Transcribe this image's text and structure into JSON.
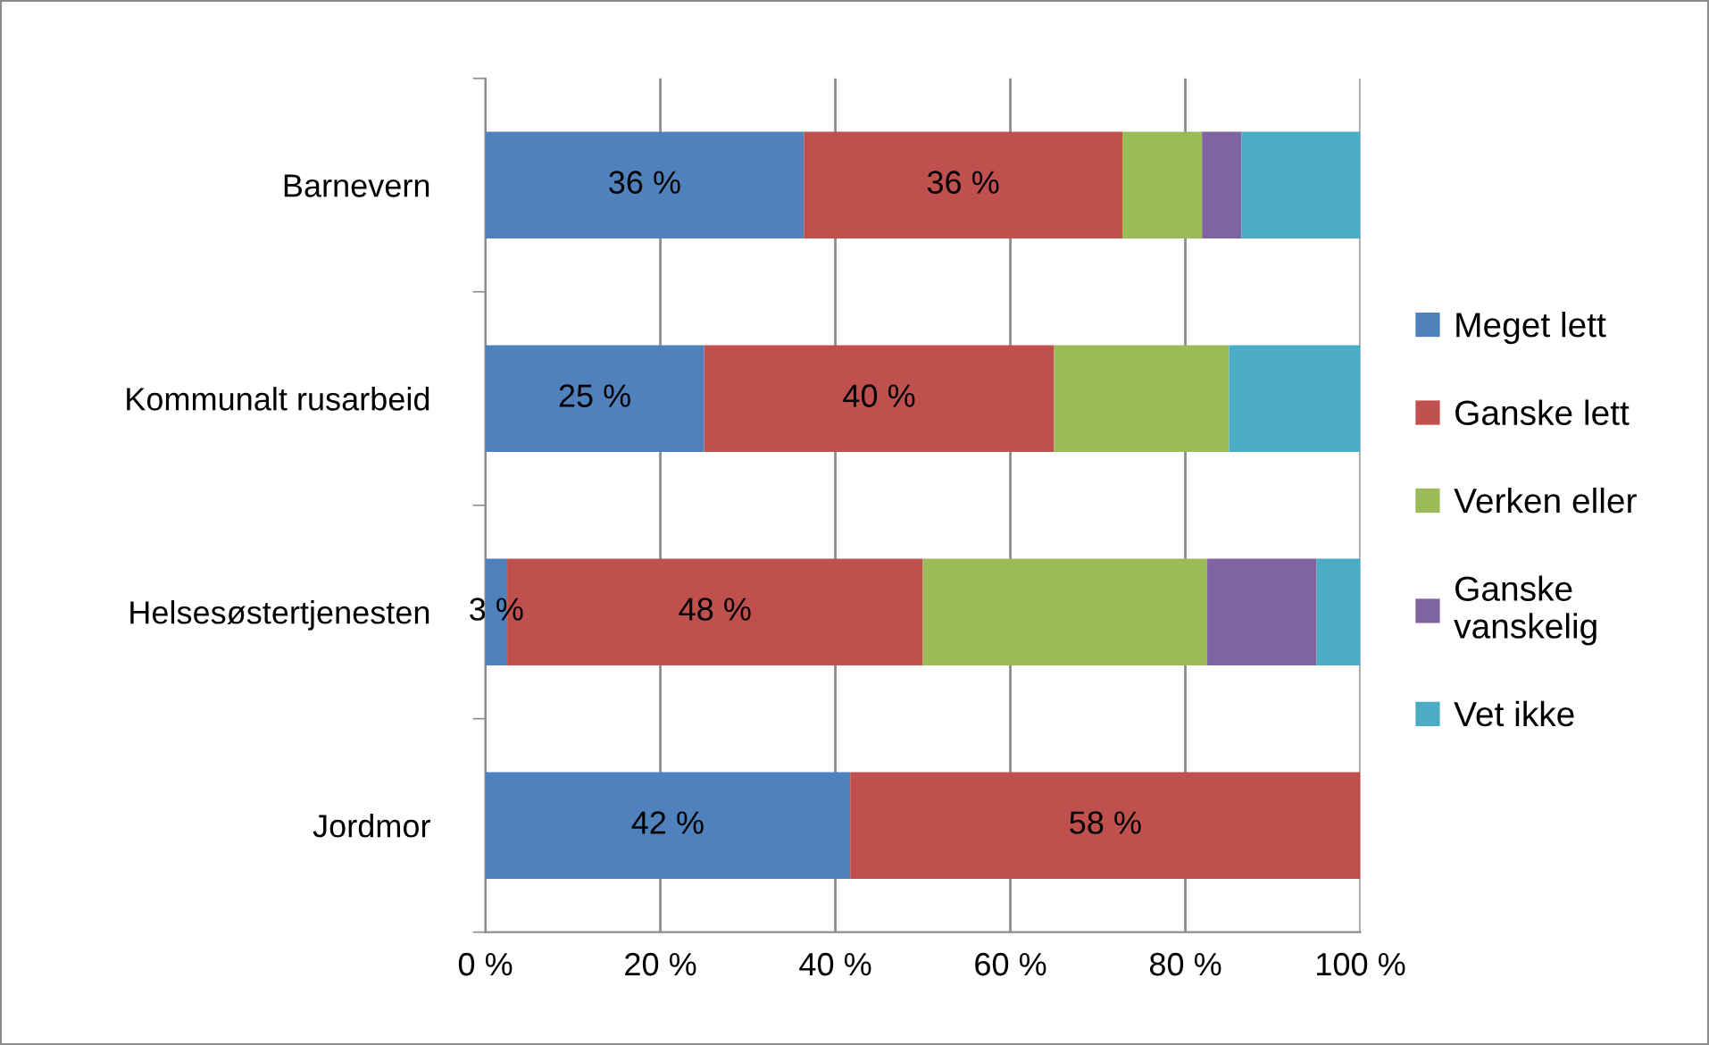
{
  "chart_data": {
    "type": "bar",
    "orientation": "horizontal",
    "stacked": true,
    "categories": [
      "Barnevern",
      "Kommunalt rusarbeid",
      "Helsesøstertjenesten",
      "Jordmor"
    ],
    "series": [
      {
        "name": "Meget lett",
        "color": "#4f81bd",
        "values": [
          36.4,
          25,
          2.5,
          41.7
        ],
        "value_labels": [
          "36 %",
          "25 %",
          "3 %",
          "42 %"
        ]
      },
      {
        "name": "Ganske lett",
        "color": "#c0504d",
        "values": [
          36.4,
          40,
          47.5,
          58.3
        ],
        "value_labels": [
          "36 %",
          "40 %",
          "48 %",
          "58 %"
        ]
      },
      {
        "name": "Verken eller",
        "color": "#9bbb59",
        "values": [
          9.1,
          20,
          32.5,
          0
        ]
      },
      {
        "name": "Ganske vanskelig",
        "color": "#8064a2",
        "values": [
          4.5,
          0,
          12.5,
          0
        ]
      },
      {
        "name": "Vet ikke",
        "color": "#4bacc6",
        "values": [
          13.6,
          15,
          5,
          0
        ]
      }
    ],
    "xlim": [
      0,
      100
    ],
    "xticks": [
      {
        "value": 0,
        "label": "0 %"
      },
      {
        "value": 20,
        "label": "20 %"
      },
      {
        "value": 40,
        "label": "40 %"
      },
      {
        "value": 60,
        "label": "60 %"
      },
      {
        "value": 80,
        "label": "80 %"
      },
      {
        "value": 100,
        "label": "100 %"
      }
    ],
    "grid": "x",
    "legend": "right"
  }
}
